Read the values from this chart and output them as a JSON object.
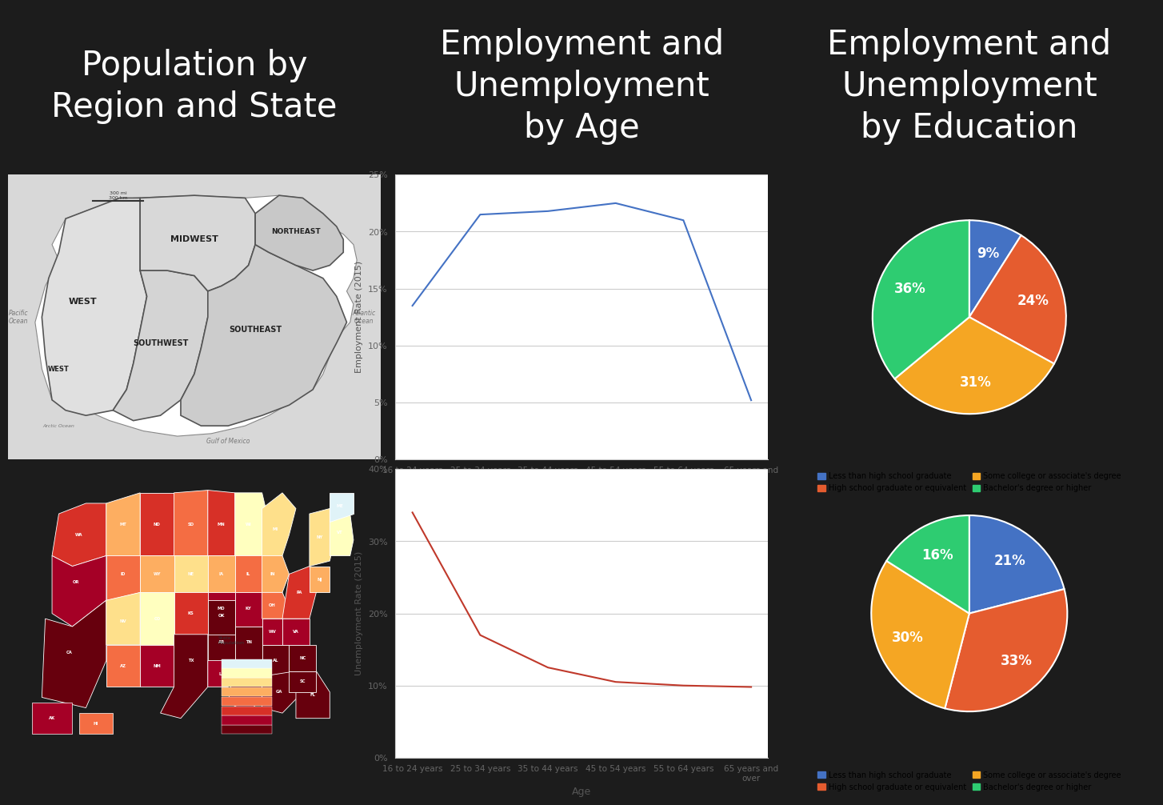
{
  "background_color": "#1c1c1c",
  "titles": [
    "Population by\nRegion and State",
    "Employment and\nUnemployment\nby Age",
    "Employment and\nUnemployment\nby Education"
  ],
  "title_fontsize": 30,
  "title_color": "white",
  "employment_ages": [
    "16 to 24 years",
    "25 to 34 years",
    "35 to 44 years",
    "45 to 54 years",
    "55 to 64 years",
    "65 years and\nover"
  ],
  "employment_values": [
    13.5,
    21.5,
    21.8,
    22.5,
    21.0,
    5.2
  ],
  "employment_ylabel": "Employment Rate (2015)",
  "employment_color": "#4472c4",
  "unemployment_values": [
    34.0,
    17.0,
    12.5,
    10.5,
    10.0,
    9.8
  ],
  "unemployment_ylabel": "Unemployment Rate (2015)",
  "unemployment_color": "#c0392b",
  "employment_ylim": [
    0,
    25
  ],
  "unemployment_ylim": [
    0,
    40
  ],
  "employment_yticks": [
    0,
    5,
    10,
    15,
    20,
    25
  ],
  "unemployment_yticks": [
    0,
    10,
    20,
    30,
    40
  ],
  "pie_employment_values": [
    9,
    24,
    31,
    36
  ],
  "pie_unemployment_values": [
    21,
    33,
    30,
    16
  ],
  "pie_colors_emp": [
    "#4472c4",
    "#e55c2f",
    "#f5a623",
    "#2ecc71"
  ],
  "pie_colors_unemp": [
    "#4472c4",
    "#e55c2f",
    "#f5a623",
    "#2ecc71"
  ],
  "pie_legend": [
    "Less than high school graduate",
    "High school graduate or equivalent",
    "Some college or associate's degree",
    "Bachelor's degree or higher"
  ],
  "pie_legend_colors": [
    "#4472c4",
    "#e55c2f",
    "#f5a623",
    "#2ecc71"
  ],
  "map_top_bg": "#d8d8d8",
  "map_top_region_bg": "#e8e8e8",
  "map_bot_bg": "#b8d4e8",
  "heat_palette": [
    "#67000d",
    "#a50026",
    "#d73027",
    "#f46d43",
    "#fdae61",
    "#fee08b",
    "#ffffbf",
    "#e0f3f8"
  ],
  "border_color": "#888888",
  "chart_bg": "white",
  "grid_color": "#cccccc",
  "tick_color": "#666666",
  "axis_label_color": "#555555",
  "spine_color": "#cccccc"
}
